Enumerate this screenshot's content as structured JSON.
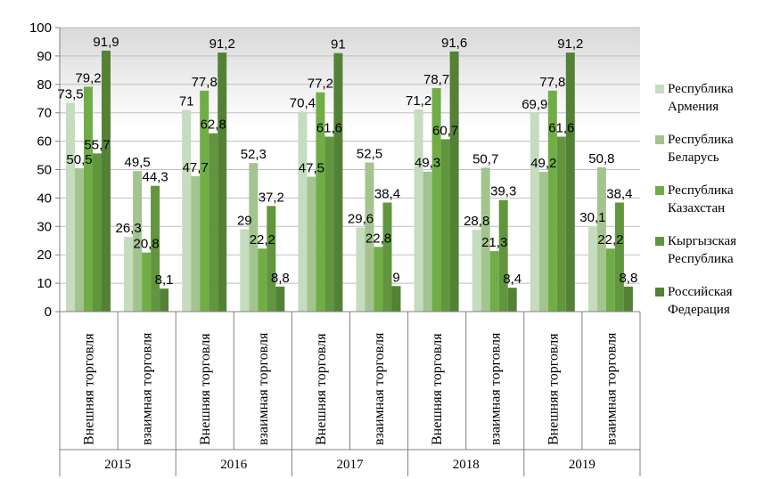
{
  "chart_data": {
    "type": "bar",
    "ylim": [
      0,
      100
    ],
    "yticks": [
      0,
      10,
      20,
      30,
      40,
      50,
      60,
      70,
      80,
      90,
      100
    ],
    "grid": true,
    "legend_position": "right",
    "years": [
      "2015",
      "2016",
      "2017",
      "2018",
      "2019"
    ],
    "subcategories": [
      "Внешняя торговля",
      "взаимная торговля"
    ],
    "categories": [
      "2015 Внешняя торговля",
      "2015 взаимная торговля",
      "2016 Внешняя торговля",
      "2016 взаимная торговля",
      "2017 Внешняя торговля",
      "2017 взаимная торговля",
      "2018 Внешняя торговля",
      "2018 взаимная торговля",
      "2019 Внешняя торговля",
      "2019 взаимная торговля"
    ],
    "series": [
      {
        "name": "Республика Армения",
        "color": "#c5dcbf",
        "values": [
          73.5,
          26.3,
          71,
          29,
          70.4,
          29.6,
          71.2,
          28.8,
          69.9,
          30.1
        ]
      },
      {
        "name": "Республика Беларусь",
        "color": "#a3c48f",
        "values": [
          50.5,
          49.5,
          47.7,
          52.3,
          47.5,
          52.5,
          49.3,
          50.7,
          49.2,
          50.8
        ]
      },
      {
        "name": "Республика Казахстан",
        "color": "#70ad47",
        "values": [
          79.2,
          20.8,
          77.8,
          22.2,
          77.2,
          22.8,
          78.7,
          21.3,
          77.8,
          22.2
        ]
      },
      {
        "name": "Кыргызская Республика",
        "color": "#62963e",
        "values": [
          55.7,
          44.3,
          62.8,
          37.2,
          61.6,
          38.4,
          60.7,
          39.3,
          61.6,
          38.4
        ]
      },
      {
        "name": "Российская Федерация",
        "color": "#548235",
        "values": [
          91.9,
          8.1,
          91.2,
          8.8,
          91,
          9,
          91.6,
          8.4,
          91.2,
          8.8
        ]
      }
    ]
  }
}
